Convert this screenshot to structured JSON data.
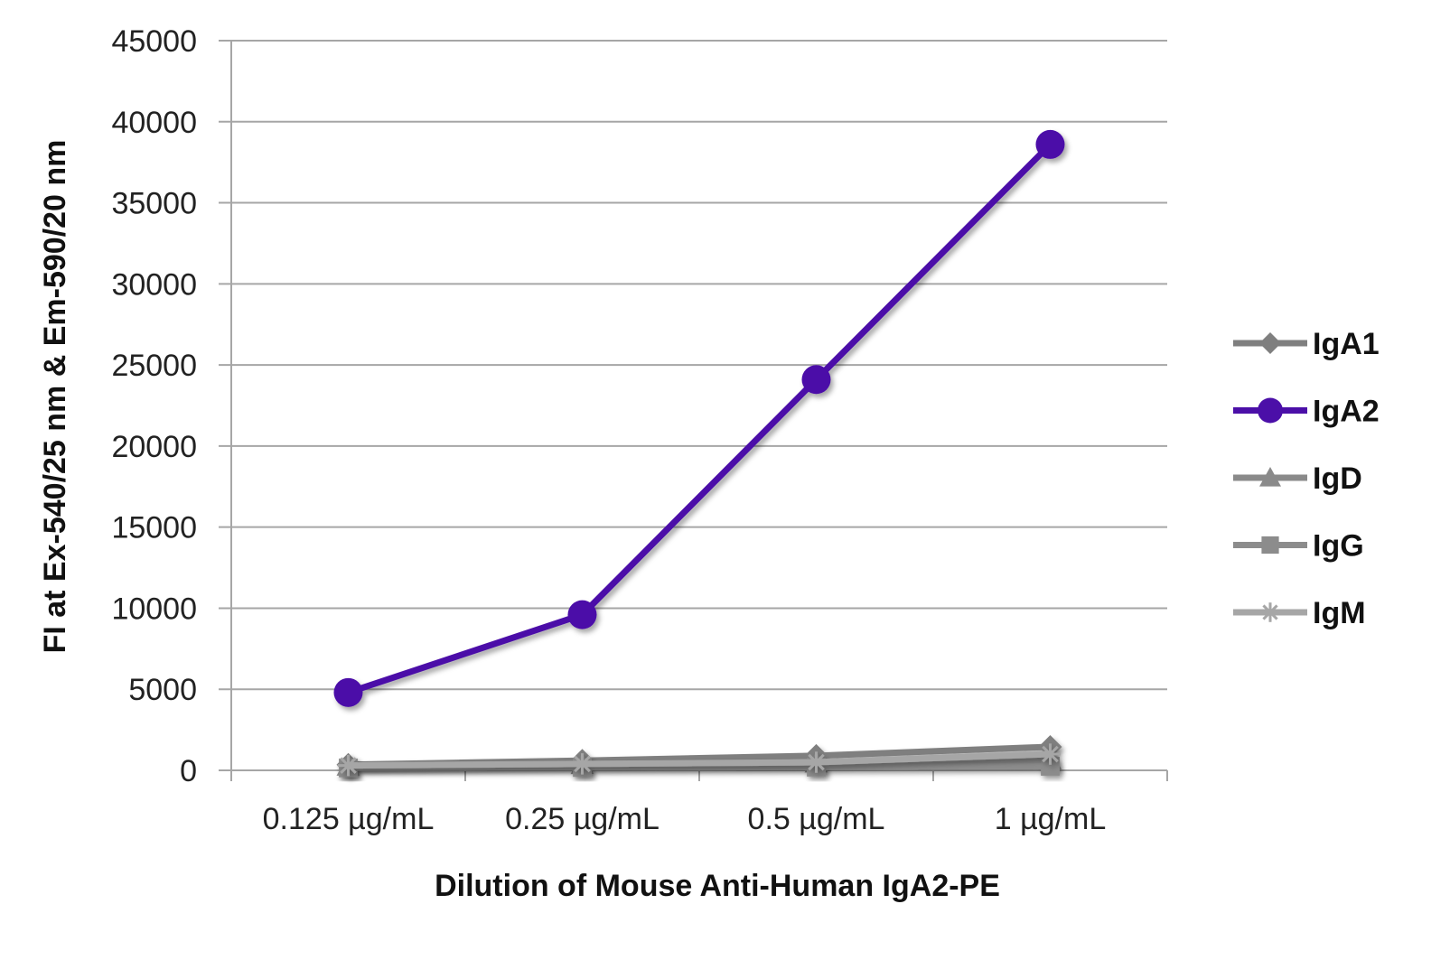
{
  "chart_data": {
    "type": "line",
    "title": "",
    "xlabel": "Dilution of Mouse Anti-Human IgA2-PE",
    "ylabel": "FI at Ex-540/25 nm & Em-590/20 nm",
    "categories": [
      "0.125 µg/mL",
      "0.25 µg/mL",
      "0.5 µg/mL",
      "1 µg/mL"
    ],
    "ylim": [
      0,
      45000
    ],
    "yticks": [
      0,
      5000,
      10000,
      15000,
      20000,
      25000,
      30000,
      35000,
      40000,
      45000
    ],
    "grid": true,
    "legend": "right",
    "series": [
      {
        "name": "IgA1",
        "color": "#7f7f7f",
        "marker": "diamond",
        "values": [
          350,
          600,
          900,
          1450
        ]
      },
      {
        "name": "IgA2",
        "color": "#4b0fa8",
        "marker": "circle",
        "values": [
          4800,
          9600,
          24100,
          38600
        ]
      },
      {
        "name": "IgD",
        "color": "#8a8a8a",
        "marker": "triangle",
        "values": [
          250,
          350,
          450,
          600
        ]
      },
      {
        "name": "IgG",
        "color": "#8c8c8c",
        "marker": "square",
        "values": [
          150,
          180,
          200,
          250
        ]
      },
      {
        "name": "IgM",
        "color": "#a6a6a6",
        "marker": "star",
        "values": [
          300,
          400,
          500,
          1000
        ]
      }
    ]
  }
}
